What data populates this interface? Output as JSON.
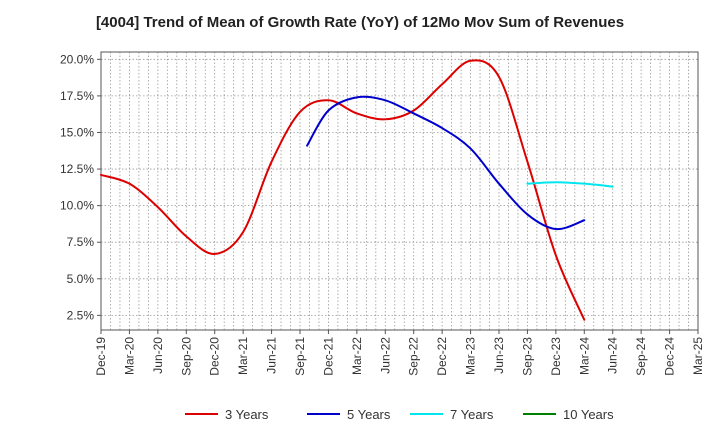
{
  "chart_data": {
    "type": "line",
    "title": "[4004]  Trend of Mean of Growth Rate (YoY) of 12Mo Mov Sum of Revenues",
    "xlabel": "",
    "ylabel": "",
    "ylim": [
      1.5,
      20.5
    ],
    "y_ticks": [
      2.5,
      5.0,
      7.5,
      10.0,
      12.5,
      15.0,
      17.5,
      20.0
    ],
    "y_tick_labels": [
      "2.5%",
      "5.0%",
      "7.5%",
      "10.0%",
      "12.5%",
      "15.0%",
      "17.5%",
      "20.0%"
    ],
    "x_tick_labels": [
      "Dec-19",
      "Mar-20",
      "Jun-20",
      "Sep-20",
      "Dec-20",
      "Mar-21",
      "Jun-21",
      "Sep-21",
      "Dec-21",
      "Mar-22",
      "Jun-22",
      "Sep-22",
      "Dec-22",
      "Mar-23",
      "Jun-23",
      "Sep-23",
      "Dec-23",
      "Mar-24",
      "Jun-24",
      "Sep-24",
      "Dec-24",
      "Mar-25"
    ],
    "grid": true,
    "legend_position": "bottom",
    "series": [
      {
        "name": "3 Years",
        "color": "#dd0000",
        "points": [
          [
            0,
            12.1
          ],
          [
            1,
            11.5
          ],
          [
            2,
            9.9
          ],
          [
            3,
            7.9
          ],
          [
            4,
            6.7
          ],
          [
            5,
            8.2
          ],
          [
            6,
            13.0
          ],
          [
            7,
            16.4
          ],
          [
            8,
            17.2
          ],
          [
            9,
            16.3
          ],
          [
            10,
            15.9
          ],
          [
            11,
            16.5
          ],
          [
            12,
            18.3
          ],
          [
            13,
            19.9
          ],
          [
            14,
            18.8
          ],
          [
            15,
            13.0
          ],
          [
            16,
            6.6
          ],
          [
            17,
            2.2
          ]
        ]
      },
      {
        "name": "5 Years",
        "color": "#0000cc",
        "points": [
          [
            7.25,
            14.1
          ],
          [
            8,
            16.5
          ],
          [
            9,
            17.4
          ],
          [
            10,
            17.2
          ],
          [
            11,
            16.3
          ],
          [
            12,
            15.3
          ],
          [
            13,
            13.9
          ],
          [
            14,
            11.5
          ],
          [
            15,
            9.4
          ],
          [
            16,
            8.4
          ],
          [
            17,
            9.0
          ]
        ]
      },
      {
        "name": "7 Years",
        "color": "#00e5ee",
        "points": [
          [
            15,
            11.5
          ],
          [
            16,
            11.6
          ],
          [
            17,
            11.5
          ],
          [
            18,
            11.3
          ]
        ]
      },
      {
        "name": "10 Years",
        "color": "#008000",
        "points": []
      }
    ]
  }
}
